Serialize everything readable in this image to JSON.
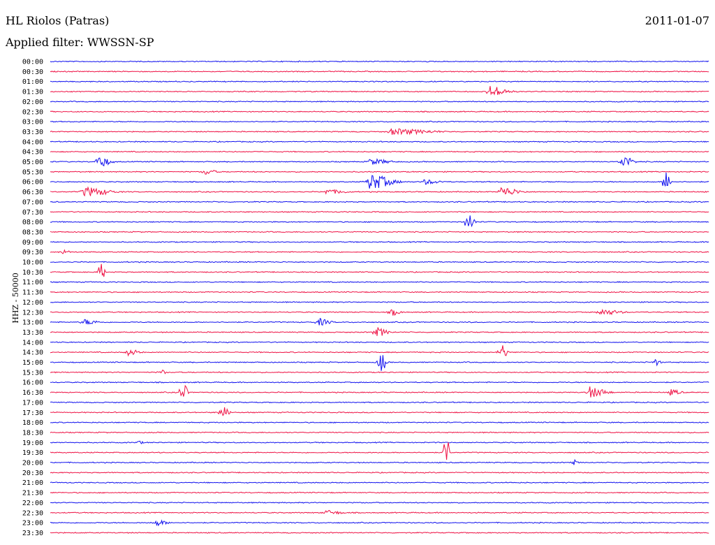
{
  "header": {
    "station": "HL Riolos (Patras)",
    "filter": "Applied filter: WWSSN-SP",
    "date": "2011-01-07"
  },
  "colors": {
    "blue": "#1010ee",
    "red": "#ee1144"
  },
  "chart_data": {
    "type": "line",
    "title": "HL Riolos (Patras)",
    "subtitle": "Applied filter: WWSSN-SP",
    "ylabel": "HHZ - 50000",
    "tick_labels": [
      "00:00",
      "00:30",
      "01:00",
      "01:30",
      "02:00",
      "02:30",
      "03:00",
      "03:30",
      "04:00",
      "04:30",
      "05:00",
      "05:30",
      "06:00",
      "06:30",
      "07:00",
      "07:30",
      "08:00",
      "08:30",
      "09:00",
      "09:30",
      "10:00",
      "10:30",
      "11:00",
      "11:30",
      "12:00",
      "12:30",
      "13:00",
      "13:30",
      "14:00",
      "14:30",
      "15:00",
      "15:30",
      "16:00",
      "16:30",
      "17:00",
      "17:30",
      "18:00",
      "18:30",
      "19:00",
      "19:30",
      "20:00",
      "20:30",
      "21:00",
      "21:30",
      "22:00",
      "22:30",
      "23:00",
      "23:30"
    ],
    "series_colors": [
      "blue",
      "red"
    ],
    "events": [
      {
        "row": "01:30",
        "minute": 20.0,
        "amp": 9,
        "dur": 1.2
      },
      {
        "row": "03:30",
        "minute": 15.5,
        "amp": 5,
        "dur": 3
      },
      {
        "row": "05:00",
        "minute": 2.2,
        "amp": 11,
        "dur": 0.7
      },
      {
        "row": "05:00",
        "minute": 26.0,
        "amp": 11,
        "dur": 0.7
      },
      {
        "row": "05:00",
        "minute": 14.5,
        "amp": 5,
        "dur": 1.5
      },
      {
        "row": "05:30",
        "minute": 7.0,
        "amp": 5,
        "dur": 0.8
      },
      {
        "row": "06:00",
        "minute": 14.5,
        "amp": 13,
        "dur": 1.5
      },
      {
        "row": "06:00",
        "minute": 28.0,
        "amp": 22,
        "dur": 0.3
      },
      {
        "row": "06:00",
        "minute": 17.0,
        "amp": 4,
        "dur": 1.2
      },
      {
        "row": "06:30",
        "minute": 1.5,
        "amp": 8,
        "dur": 1.8
      },
      {
        "row": "06:30",
        "minute": 20.5,
        "amp": 8,
        "dur": 1.2
      },
      {
        "row": "06:30",
        "minute": 12.5,
        "amp": 4,
        "dur": 1.5
      },
      {
        "row": "08:00",
        "minute": 19.0,
        "amp": 18,
        "dur": 0.4
      },
      {
        "row": "09:30",
        "minute": 0.5,
        "amp": 4,
        "dur": 0.6
      },
      {
        "row": "10:30",
        "minute": 2.3,
        "amp": 26,
        "dur": 0.2
      },
      {
        "row": "12:30",
        "minute": 15.5,
        "amp": 6,
        "dur": 0.6
      },
      {
        "row": "12:30",
        "minute": 25.0,
        "amp": 5,
        "dur": 1.5
      },
      {
        "row": "13:00",
        "minute": 12.2,
        "amp": 6,
        "dur": 0.8
      },
      {
        "row": "13:00",
        "minute": 1.5,
        "amp": 5,
        "dur": 1.0
      },
      {
        "row": "13:30",
        "minute": 14.8,
        "amp": 8,
        "dur": 0.8
      },
      {
        "row": "14:30",
        "minute": 20.5,
        "amp": 14,
        "dur": 0.4
      },
      {
        "row": "14:30",
        "minute": 3.5,
        "amp": 6,
        "dur": 0.8
      },
      {
        "row": "15:00",
        "minute": 15.0,
        "amp": 18,
        "dur": 0.4
      },
      {
        "row": "15:00",
        "minute": 27.5,
        "amp": 6,
        "dur": 0.4
      },
      {
        "row": "15:30",
        "minute": 5.0,
        "amp": 5,
        "dur": 0.4
      },
      {
        "row": "16:30",
        "minute": 6.0,
        "amp": 20,
        "dur": 0.3
      },
      {
        "row": "16:30",
        "minute": 24.5,
        "amp": 9,
        "dur": 1.2
      },
      {
        "row": "16:30",
        "minute": 28.2,
        "amp": 5,
        "dur": 0.8
      },
      {
        "row": "17:30",
        "minute": 7.8,
        "amp": 14,
        "dur": 0.4
      },
      {
        "row": "19:00",
        "minute": 4.0,
        "amp": 4,
        "dur": 0.3
      },
      {
        "row": "19:30",
        "minute": 18.0,
        "amp": 40,
        "dur": 0.2
      },
      {
        "row": "20:00",
        "minute": 23.8,
        "amp": 5,
        "dur": 0.3
      },
      {
        "row": "22:30",
        "minute": 12.5,
        "amp": 4,
        "dur": 1.2
      },
      {
        "row": "23:00",
        "minute": 4.8,
        "amp": 5,
        "dur": 0.8
      }
    ]
  }
}
